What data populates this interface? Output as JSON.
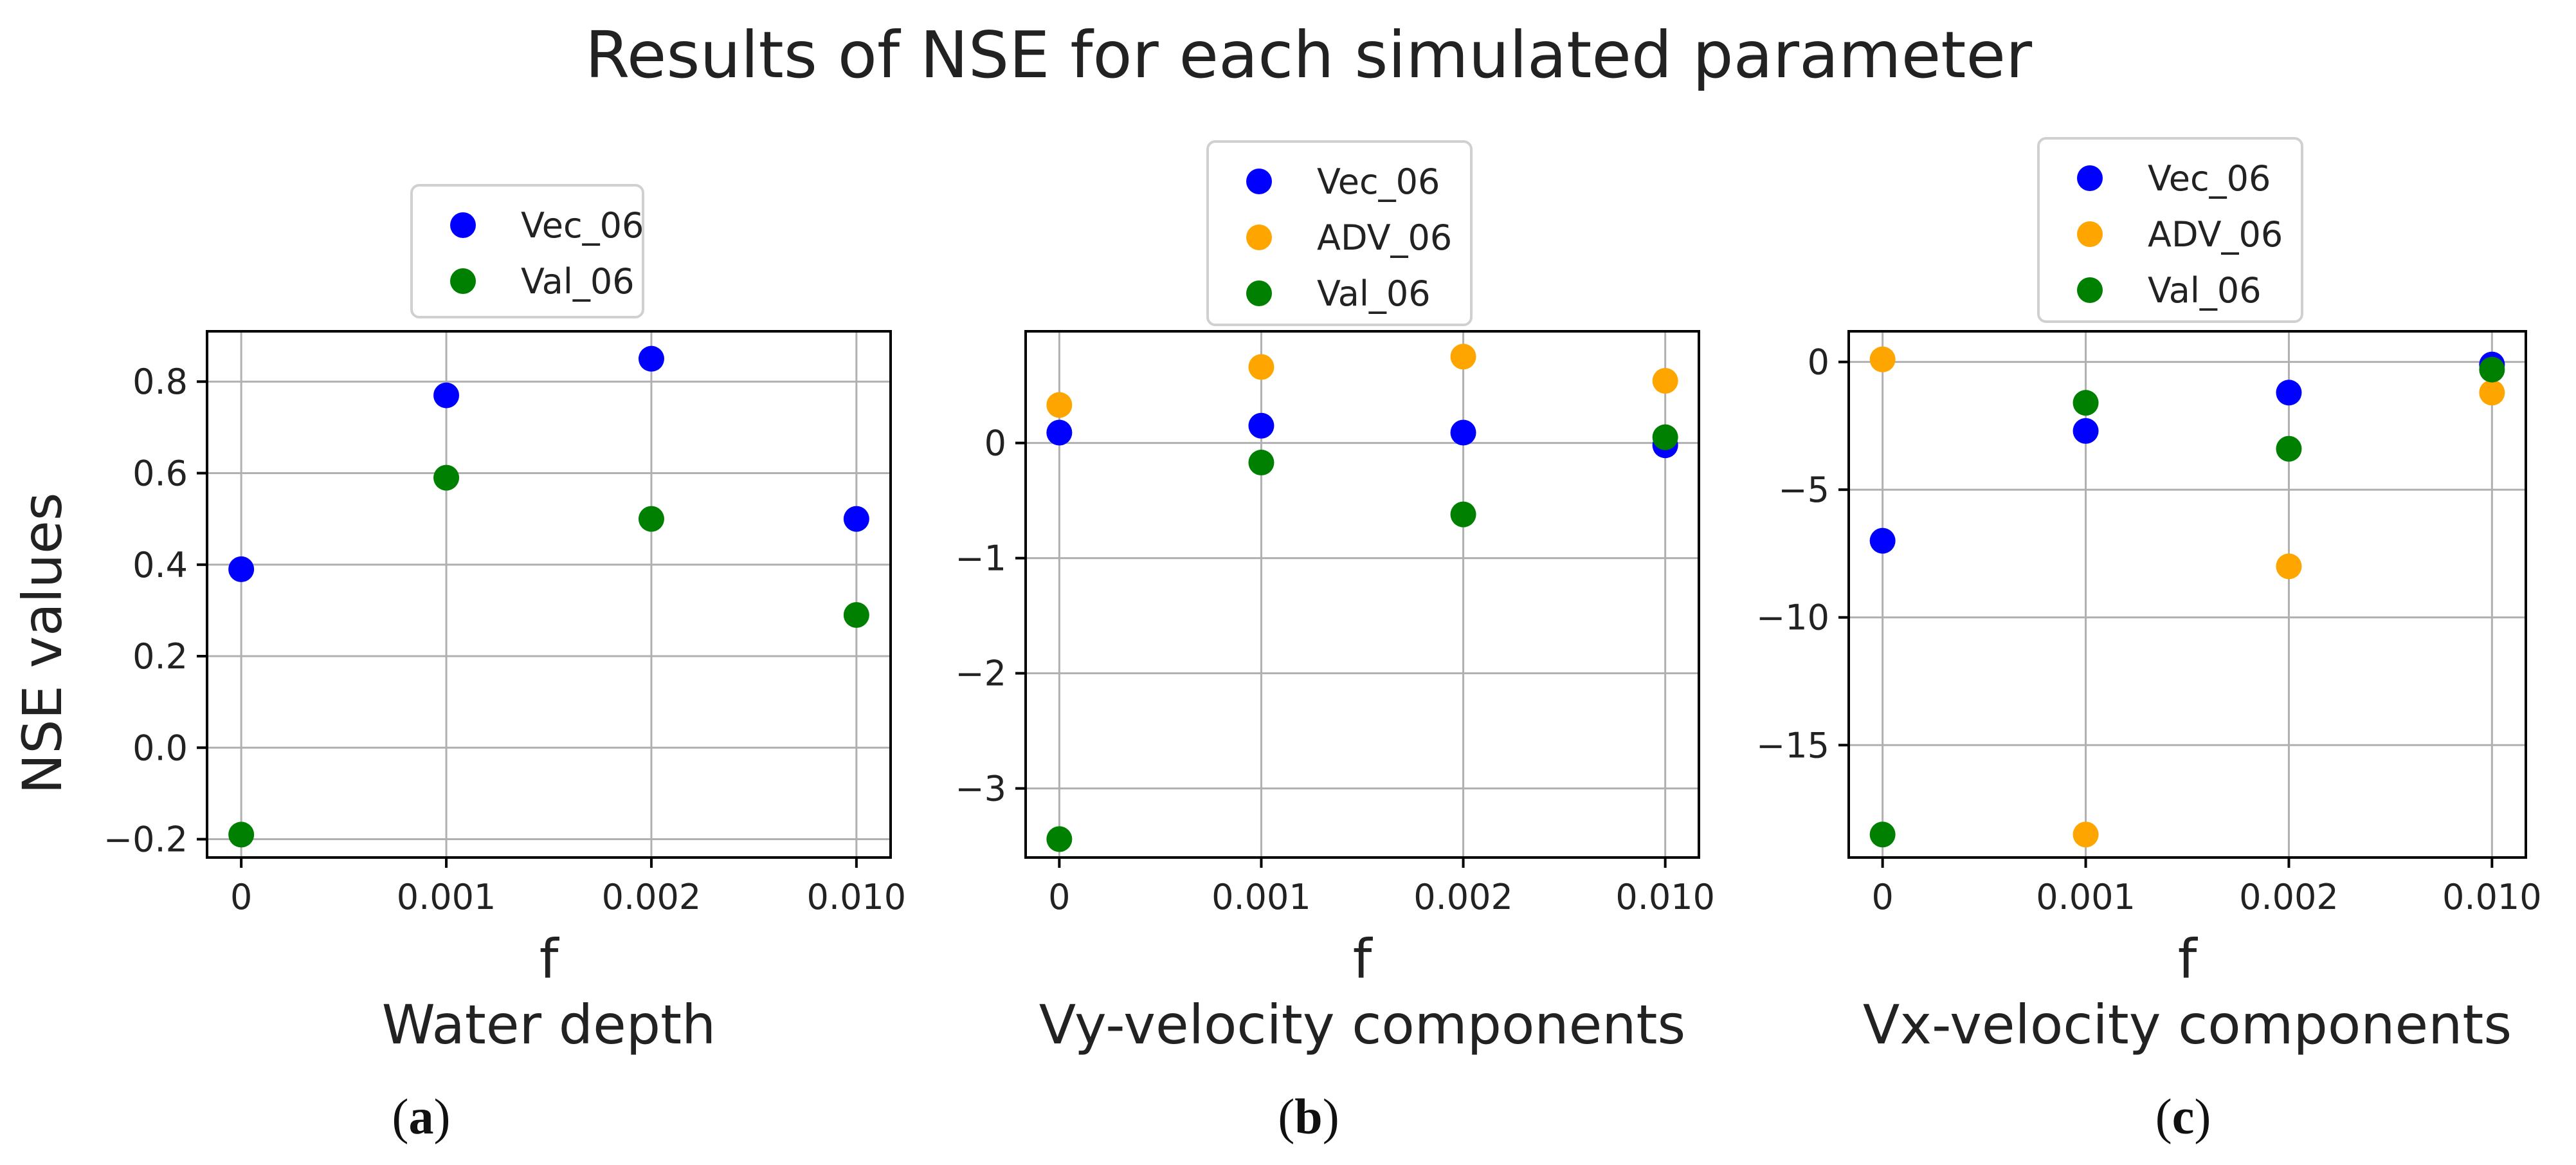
{
  "figure_title": "Results of NSE for each simulated parameter",
  "colors": {
    "Vec_06": "#0000ff",
    "ADV_06": "#ffa500",
    "Val_06": "#008000",
    "grid": "#b0b0b0",
    "axis": "#000000"
  },
  "chart_data": [
    {
      "type": "scatter",
      "panel": "a",
      "caption_letter": "a",
      "title": "",
      "xlabel": "f",
      "xlabel_sub": "Water depth",
      "ylabel": "NSE values",
      "categories": [
        "0",
        "0.001",
        "0.002",
        "0.010"
      ],
      "ylim": [
        -0.24,
        0.91
      ],
      "yticks": [
        -0.2,
        0.0,
        0.2,
        0.4,
        0.6,
        0.8
      ],
      "ytick_labels": [
        "−0.2",
        "0.0",
        "0.2",
        "0.4",
        "0.6",
        "0.8"
      ],
      "grid": true,
      "legend_position": "above plot",
      "series": [
        {
          "name": "Vec_06",
          "values": [
            0.39,
            0.77,
            0.85,
            0.5
          ]
        },
        {
          "name": "Val_06",
          "values": [
            -0.19,
            0.59,
            0.5,
            0.29
          ]
        }
      ]
    },
    {
      "type": "scatter",
      "panel": "b",
      "caption_letter": "b",
      "title": "",
      "xlabel": "f",
      "xlabel_sub": "Vy-velocity components",
      "ylabel": "",
      "categories": [
        "0",
        "0.001",
        "0.002",
        "0.010"
      ],
      "ylim": [
        -3.6,
        0.97
      ],
      "yticks": [
        -3,
        -2,
        -1,
        0
      ],
      "ytick_labels": [
        "−3",
        "−2",
        "−1",
        "0"
      ],
      "grid": true,
      "legend_position": "above plot",
      "series": [
        {
          "name": "Vec_06",
          "values": [
            0.09,
            0.15,
            0.09,
            -0.02
          ]
        },
        {
          "name": "ADV_06",
          "values": [
            0.33,
            0.66,
            0.75,
            0.54
          ]
        },
        {
          "name": "Val_06",
          "values": [
            -3.44,
            -0.17,
            -0.62,
            0.05
          ]
        }
      ]
    },
    {
      "type": "scatter",
      "panel": "c",
      "caption_letter": "c",
      "title": "",
      "xlabel": "f",
      "xlabel_sub": "Vx-velocity components",
      "ylabel": "",
      "categories": [
        "0",
        "0.001",
        "0.002",
        "0.010"
      ],
      "ylim": [
        -19.4,
        1.2
      ],
      "yticks": [
        -15,
        -10,
        -5,
        0
      ],
      "ytick_labels": [
        "−15",
        "−10",
        "−5",
        "0"
      ],
      "grid": true,
      "legend_position": "above plot",
      "series": [
        {
          "name": "Vec_06",
          "values": [
            -7.0,
            -2.7,
            -1.2,
            -0.1
          ]
        },
        {
          "name": "ADV_06",
          "values": [
            0.1,
            -18.5,
            -8.0,
            -1.2
          ]
        },
        {
          "name": "Val_06",
          "values": [
            -18.5,
            -1.6,
            -3.4,
            -0.3
          ]
        }
      ]
    }
  ]
}
